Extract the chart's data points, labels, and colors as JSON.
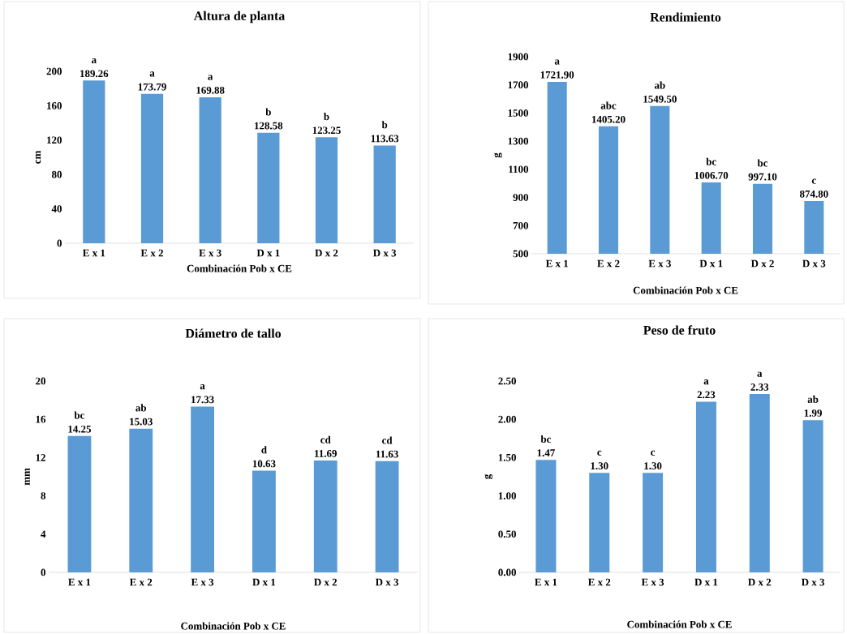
{
  "chart_data": [
    {
      "type": "bar",
      "title": "Altura de planta",
      "xlabel": "Combinación Pob x CE",
      "ylabel": "cm",
      "categories": [
        "E x 1",
        "E x 2",
        "E x 3",
        "D x 1",
        "D x 2",
        "D x 3"
      ],
      "values": [
        189.26,
        173.79,
        169.88,
        128.58,
        123.25,
        113.63
      ],
      "value_labels": [
        "189.26",
        "173.79",
        "169.88",
        "128.58",
        "123.25",
        "113.63"
      ],
      "color": "#5b9bd5",
      "ylim": [
        0,
        200
      ],
      "yticks": [
        0,
        40,
        80,
        120,
        160,
        200
      ],
      "annotations": [
        {
          "text": "a",
          "x": "E x 1",
          "y": 189.26
        },
        {
          "text": "a",
          "x": "E x 2",
          "y": 173.79
        },
        {
          "text": "a",
          "x": "E x 3",
          "y": 169.88
        },
        {
          "text": "b",
          "x": "D x 1",
          "y": 128.58
        },
        {
          "text": "b",
          "x": "D x 2",
          "y": 123.25
        },
        {
          "text": "b",
          "x": "D x 3",
          "y": 113.63
        }
      ]
    },
    {
      "type": "bar",
      "title": "Rendimiento",
      "xlabel": "Combinación Pob x CE",
      "ylabel": "g",
      "categories": [
        "E x 1",
        "E x 2",
        "E x 3",
        "D x 1",
        "D x 2",
        "D x 3"
      ],
      "values": [
        1721.9,
        1405.2,
        1549.5,
        1006.7,
        997.1,
        874.8
      ],
      "value_labels": [
        "1721.90",
        "1405.20",
        "1549.50",
        "1006.70",
        "997.10",
        "874.80"
      ],
      "color": "#5b9bd5",
      "ylim": [
        500,
        1900
      ],
      "yticks": [
        500,
        700,
        900,
        1100,
        1300,
        1500,
        1700,
        1900
      ],
      "annotations": [
        {
          "text": "a",
          "x": "E x 1",
          "y": 1721.9
        },
        {
          "text": "abc",
          "x": "E x 2",
          "y": 1405.2
        },
        {
          "text": "ab",
          "x": "E x 3",
          "y": 1549.5
        },
        {
          "text": "bc",
          "x": "D x 1",
          "y": 1006.7
        },
        {
          "text": "bc",
          "x": "D x 2",
          "y": 997.1
        },
        {
          "text": "c",
          "x": "D x 3",
          "y": 874.8
        }
      ]
    },
    {
      "type": "bar",
      "title": "Diámetro de tallo",
      "xlabel": "Combinación Pob x CE",
      "ylabel": "mm",
      "categories": [
        "E x 1",
        "E x 2",
        "E x 3",
        "D x 1",
        "D x 2",
        "D x 3"
      ],
      "values": [
        14.25,
        15.03,
        17.33,
        10.63,
        11.69,
        11.63
      ],
      "value_labels": [
        "14.25",
        "15.03",
        "17.33",
        "10.63",
        "11.69",
        "11.63"
      ],
      "color": "#5b9bd5",
      "ylim": [
        0,
        20
      ],
      "yticks": [
        0,
        4,
        8,
        12,
        16,
        20
      ],
      "annotations": [
        {
          "text": "bc",
          "x": "E x 1",
          "y": 14.25
        },
        {
          "text": "ab",
          "x": "E x 2",
          "y": 15.03
        },
        {
          "text": "a",
          "x": "E x 3",
          "y": 17.33
        },
        {
          "text": "d",
          "x": "D x 1",
          "y": 10.63
        },
        {
          "text": "cd",
          "x": "D x 2",
          "y": 11.69
        },
        {
          "text": "cd",
          "x": "D x 3",
          "y": 11.63
        }
      ]
    },
    {
      "type": "bar",
      "title": "Peso de fruto",
      "xlabel": "Combinación Pob x CE",
      "ylabel": "g",
      "categories": [
        "E x 1",
        "E x 2",
        "E x 3",
        "D x 1",
        "D x 2",
        "D x 3"
      ],
      "values": [
        1.47,
        1.3,
        1.3,
        2.23,
        2.33,
        1.99
      ],
      "value_labels": [
        "1.47",
        "1.30",
        "1.30",
        "2.23",
        "2.33",
        "1.99"
      ],
      "color": "#5b9bd5",
      "ylim": [
        0,
        2.5
      ],
      "yticks": [
        {
          "value": 0,
          "label": "0.00"
        },
        {
          "value": 0.5,
          "label": "0.50"
        },
        {
          "value": 1,
          "label": "1.00"
        },
        {
          "value": 1.5,
          "label": "1.50"
        },
        {
          "value": 2,
          "label": "2.00"
        },
        {
          "value": 2.5,
          "label": "2.50"
        }
      ],
      "annotations": [
        {
          "text": "bc",
          "x": "E x 1",
          "y": 1.47
        },
        {
          "text": "c",
          "x": "E x 2",
          "y": 1.3
        },
        {
          "text": "c",
          "x": "E x 3",
          "y": 1.3
        },
        {
          "text": "a",
          "x": "D x 1",
          "y": 2.23
        },
        {
          "text": "a",
          "x": "D x 2",
          "y": 2.33
        },
        {
          "text": "ab",
          "x": "D x 3",
          "y": 1.99
        }
      ]
    }
  ]
}
